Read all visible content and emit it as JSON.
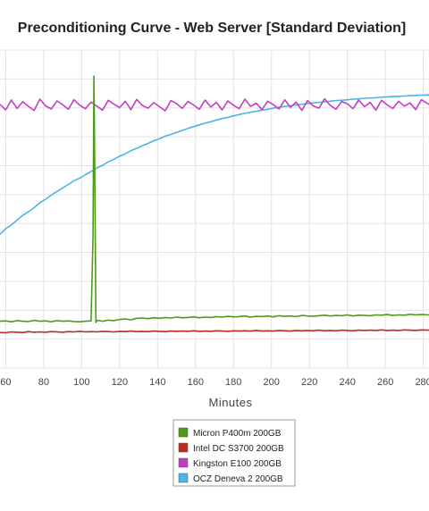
{
  "chart_data": {
    "type": "line",
    "title": "Preconditioning Curve - Web Server [Standard Deviation]",
    "xlabel": "Minutes",
    "ylabel": "",
    "x_ticks": [
      60,
      80,
      100,
      120,
      140,
      160,
      180,
      200,
      220,
      240,
      260,
      280
    ],
    "xlim": [
      57,
      283
    ],
    "ylim": [
      0,
      11
    ],
    "grid": true,
    "legend_position": "bottom-center",
    "series": [
      {
        "name": "Micron P400m 200GB",
        "color": "#4d9a17",
        "x": [
          57,
          60,
          63,
          66,
          69,
          72,
          75,
          78,
          81,
          84,
          87,
          90,
          93,
          96,
          99,
          102,
          105,
          106,
          106.5,
          107,
          107.5,
          108,
          109,
          111,
          114,
          117,
          120,
          123,
          126,
          129,
          132,
          135,
          138,
          141,
          144,
          147,
          150,
          153,
          156,
          159,
          162,
          165,
          168,
          171,
          174,
          177,
          180,
          183,
          186,
          189,
          192,
          195,
          198,
          201,
          204,
          207,
          210,
          213,
          216,
          219,
          222,
          225,
          228,
          231,
          234,
          237,
          240,
          243,
          246,
          249,
          252,
          255,
          258,
          261,
          264,
          267,
          270,
          273,
          276,
          279,
          283
        ],
        "values": [
          1.62,
          1.63,
          1.6,
          1.64,
          1.62,
          1.61,
          1.65,
          1.62,
          1.63,
          1.6,
          1.64,
          1.62,
          1.63,
          1.61,
          1.6,
          1.62,
          1.63,
          4.6,
          10.1,
          6.2,
          1.58,
          1.63,
          1.65,
          1.62,
          1.66,
          1.64,
          1.68,
          1.7,
          1.67,
          1.72,
          1.73,
          1.71,
          1.74,
          1.72,
          1.75,
          1.73,
          1.76,
          1.74,
          1.75,
          1.77,
          1.74,
          1.76,
          1.75,
          1.78,
          1.76,
          1.79,
          1.77,
          1.78,
          1.8,
          1.76,
          1.79,
          1.78,
          1.8,
          1.77,
          1.81,
          1.79,
          1.8,
          1.78,
          1.82,
          1.8,
          1.79,
          1.81,
          1.83,
          1.8,
          1.82,
          1.81,
          1.84,
          1.8,
          1.83,
          1.82,
          1.81,
          1.84,
          1.83,
          1.85,
          1.82,
          1.84,
          1.83,
          1.86,
          1.84,
          1.85,
          1.84
        ]
      },
      {
        "name": "Intel DC S3700 200GB",
        "color": "#bf2a1f",
        "x": [
          57,
          60,
          63,
          66,
          69,
          72,
          75,
          78,
          81,
          84,
          87,
          90,
          93,
          96,
          99,
          102,
          105,
          108,
          111,
          114,
          117,
          120,
          123,
          126,
          129,
          132,
          135,
          138,
          141,
          144,
          147,
          150,
          153,
          156,
          159,
          162,
          165,
          168,
          171,
          174,
          177,
          180,
          183,
          186,
          189,
          192,
          195,
          198,
          201,
          204,
          207,
          210,
          213,
          216,
          219,
          222,
          225,
          228,
          231,
          234,
          237,
          240,
          243,
          246,
          249,
          252,
          255,
          258,
          261,
          264,
          267,
          270,
          273,
          276,
          279,
          283
        ],
        "values": [
          1.23,
          1.22,
          1.25,
          1.24,
          1.23,
          1.26,
          1.24,
          1.25,
          1.24,
          1.26,
          1.25,
          1.24,
          1.26,
          1.25,
          1.27,
          1.25,
          1.26,
          1.25,
          1.27,
          1.26,
          1.25,
          1.27,
          1.26,
          1.28,
          1.26,
          1.27,
          1.26,
          1.28,
          1.27,
          1.26,
          1.28,
          1.27,
          1.28,
          1.27,
          1.29,
          1.27,
          1.28,
          1.27,
          1.29,
          1.28,
          1.27,
          1.29,
          1.28,
          1.29,
          1.28,
          1.3,
          1.28,
          1.29,
          1.28,
          1.3,
          1.29,
          1.28,
          1.3,
          1.29,
          1.3,
          1.29,
          1.31,
          1.29,
          1.3,
          1.29,
          1.31,
          1.3,
          1.29,
          1.31,
          1.3,
          1.31,
          1.3,
          1.32,
          1.3,
          1.31,
          1.3,
          1.32,
          1.31,
          1.3,
          1.32,
          1.31
        ]
      },
      {
        "name": "Kingston E100 200GB",
        "color": "#c23ec2",
        "x": [
          57,
          60,
          63,
          66,
          69,
          72,
          75,
          78,
          81,
          84,
          87,
          90,
          93,
          96,
          99,
          102,
          105,
          108,
          111,
          114,
          117,
          120,
          123,
          126,
          129,
          132,
          135,
          138,
          141,
          144,
          147,
          150,
          153,
          156,
          159,
          162,
          165,
          168,
          171,
          174,
          177,
          180,
          183,
          186,
          189,
          192,
          195,
          198,
          201,
          204,
          207,
          210,
          213,
          216,
          219,
          222,
          225,
          228,
          231,
          234,
          237,
          240,
          243,
          246,
          249,
          252,
          255,
          258,
          261,
          264,
          267,
          270,
          273,
          276,
          279,
          283
        ],
        "values": [
          9.12,
          8.93,
          9.27,
          8.98,
          9.21,
          9.05,
          8.91,
          9.3,
          9.07,
          8.96,
          9.24,
          9.11,
          8.95,
          9.28,
          9.09,
          8.97,
          9.2,
          9.06,
          8.92,
          9.26,
          9.13,
          9.01,
          9.23,
          8.94,
          9.29,
          9.08,
          8.99,
          9.18,
          9.04,
          8.9,
          9.25,
          9.15,
          8.98,
          9.22,
          9.1,
          8.95,
          9.27,
          9.03,
          9.19,
          8.93,
          9.24,
          9.09,
          8.97,
          9.3,
          9.05,
          9.16,
          8.94,
          9.23,
          9.11,
          8.96,
          9.28,
          9.02,
          9.2,
          8.91,
          9.25,
          9.07,
          8.99,
          9.31,
          9.08,
          8.95,
          9.22,
          9.14,
          8.97,
          9.27,
          9.04,
          9.19,
          8.92,
          9.26,
          9.1,
          8.98,
          9.23,
          9.06,
          9.17,
          8.94,
          9.28,
          9.12
        ]
      },
      {
        "name": "OCZ Deneva 2 200GB",
        "color": "#4cb4e7",
        "x": [
          57,
          60,
          63,
          66,
          69,
          72,
          75,
          78,
          81,
          84,
          87,
          90,
          93,
          96,
          99,
          102,
          105,
          108,
          111,
          114,
          117,
          120,
          123,
          126,
          129,
          132,
          135,
          138,
          141,
          144,
          147,
          150,
          153,
          156,
          159,
          162,
          165,
          168,
          171,
          174,
          177,
          180,
          183,
          186,
          189,
          192,
          195,
          198,
          201,
          204,
          207,
          210,
          213,
          216,
          219,
          222,
          225,
          228,
          231,
          234,
          237,
          240,
          243,
          246,
          249,
          252,
          255,
          258,
          261,
          264,
          267,
          270,
          273,
          276,
          279,
          283
        ],
        "values": [
          4.63,
          4.82,
          4.95,
          5.12,
          5.28,
          5.41,
          5.55,
          5.72,
          5.84,
          5.98,
          6.11,
          6.23,
          6.35,
          6.48,
          6.57,
          6.69,
          6.8,
          6.92,
          7.01,
          7.13,
          7.22,
          7.33,
          7.41,
          7.52,
          7.6,
          7.69,
          7.77,
          7.86,
          7.93,
          8.02,
          8.08,
          8.15,
          8.22,
          8.29,
          8.35,
          8.41,
          8.47,
          8.52,
          8.58,
          8.63,
          8.67,
          8.72,
          8.77,
          8.81,
          8.85,
          8.88,
          8.92,
          8.95,
          8.99,
          9.02,
          9.05,
          9.07,
          9.1,
          9.12,
          9.15,
          9.17,
          9.19,
          9.21,
          9.23,
          9.25,
          9.26,
          9.28,
          9.3,
          9.31,
          9.33,
          9.34,
          9.35,
          9.37,
          9.38,
          9.39,
          9.4,
          9.41,
          9.42,
          9.43,
          9.44,
          9.45
        ]
      }
    ]
  }
}
